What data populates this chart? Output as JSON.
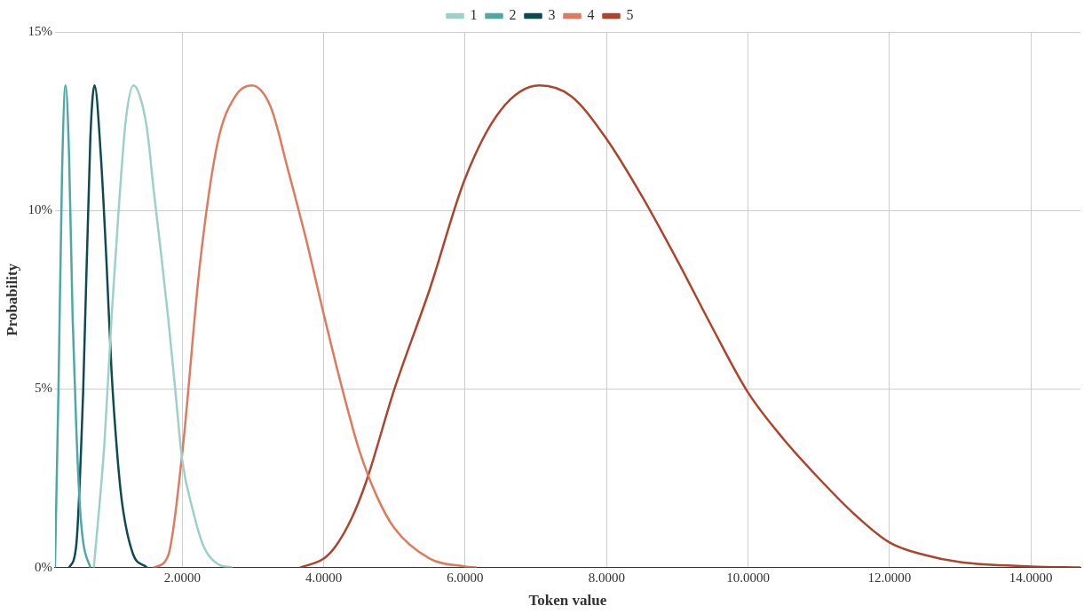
{
  "chart_data": {
    "type": "line",
    "xlabel": "Token value",
    "ylabel": "Probability",
    "legend": "top",
    "grid": true,
    "marker": "none",
    "line_style": "solid",
    "xlim": [
      0.2,
      14.7
    ],
    "ylim": [
      0,
      15
    ],
    "xticks": [
      {
        "value": 2,
        "label": "2.0000"
      },
      {
        "value": 4,
        "label": "4.0000"
      },
      {
        "value": 6,
        "label": "6.0000"
      },
      {
        "value": 8,
        "label": "8.0000"
      },
      {
        "value": 10,
        "label": "10.0000"
      },
      {
        "value": 12,
        "label": "12.0000"
      },
      {
        "value": 14,
        "label": "14.0000"
      }
    ],
    "yticks": [
      {
        "value": 0,
        "label": "0%"
      },
      {
        "value": 5,
        "label": "5%"
      },
      {
        "value": 10,
        "label": "10%"
      },
      {
        "value": 15,
        "label": "15%"
      }
    ],
    "series": [
      {
        "name": "1",
        "color": "#9dd0c8",
        "x": [
          0.75,
          0.9,
          1.0,
          1.1,
          1.2,
          1.31,
          1.4,
          1.5,
          1.6,
          1.7,
          1.8,
          1.9,
          2.0,
          2.15,
          2.3,
          2.5,
          2.7
        ],
        "values": [
          0,
          3.5,
          7,
          10,
          12.5,
          13.5,
          13.2,
          12.3,
          10.5,
          8.8,
          7,
          5,
          3,
          1.6,
          0.6,
          0.1,
          0
        ]
      },
      {
        "name": "2",
        "color": "#4ea9a6",
        "x": [
          0.2,
          0.25,
          0.3,
          0.35,
          0.4,
          0.45,
          0.5,
          0.55,
          0.6,
          0.7
        ],
        "values": [
          0,
          5,
          11,
          13.5,
          11.5,
          7,
          4,
          1.8,
          0.7,
          0
        ]
      },
      {
        "name": "3",
        "color": "#0d4a52",
        "x": [
          0.4,
          0.5,
          0.6,
          0.7,
          0.76,
          0.85,
          0.93,
          1.0,
          1.08,
          1.15,
          1.3,
          1.5
        ],
        "values": [
          0,
          0.6,
          5,
          12,
          13.5,
          11.5,
          8.5,
          5.5,
          3.2,
          1.8,
          0.4,
          0
        ]
      },
      {
        "name": "4",
        "color": "#e07a5f",
        "x": [
          1.6,
          1.8,
          2.0,
          2.25,
          2.5,
          2.75,
          2.98,
          3.25,
          3.5,
          3.75,
          4.0,
          4.25,
          4.5,
          4.75,
          5.0,
          5.5,
          6.0,
          6.15
        ],
        "values": [
          0,
          0.33,
          3.2,
          8.5,
          11.9,
          13.2,
          13.5,
          12.9,
          11.1,
          9.2,
          7.1,
          5.1,
          3.3,
          2,
          1.1,
          0.25,
          0.03,
          0
        ]
      },
      {
        "name": "5",
        "color": "#b0432d",
        "x": [
          3.67,
          4.0,
          4.17,
          4.4,
          4.6,
          5.0,
          5.5,
          6.0,
          6.5,
          7.05,
          7.5,
          8.0,
          8.5,
          9.0,
          9.5,
          10.0,
          10.5,
          11.0,
          11.5,
          12.0,
          12.5,
          13.0,
          14.0,
          14.7
        ],
        "values": [
          0,
          0.25,
          0.6,
          1.4,
          2.4,
          5,
          7.8,
          10.9,
          12.8,
          13.5,
          13.2,
          12,
          10.4,
          8.6,
          6.7,
          4.9,
          3.6,
          2.5,
          1.5,
          0.7,
          0.35,
          0.15,
          0.03,
          0
        ]
      }
    ]
  }
}
